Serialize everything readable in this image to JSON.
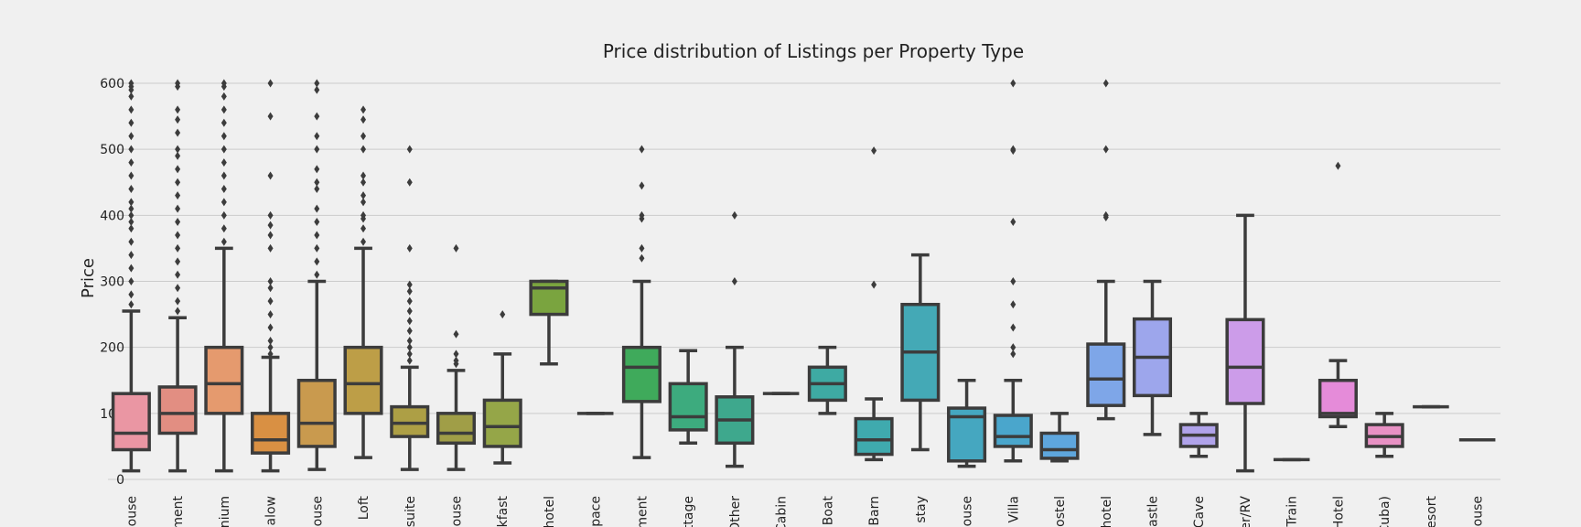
{
  "chart_data": {
    "type": "box",
    "title": "Price distribution of Listings per Property Type",
    "xlabel": "",
    "ylabel": "Price",
    "ylim": [
      -10,
      610
    ],
    "yticks": [
      0,
      100,
      200,
      300,
      400,
      500,
      600
    ],
    "grid": "horizontal",
    "legend": "none",
    "categories": [
      "ouse",
      "ment",
      "nium",
      "alow",
      "ouse",
      "Loft",
      "suite",
      "ouse",
      "kfast",
      "hotel",
      "space",
      "ment",
      "ttage",
      "Other",
      "Cabin",
      "Boat",
      "Barn",
      "stay",
      "ouse",
      "Villa",
      "ostel",
      "hotel",
      "astle",
      "Cave",
      "er/RV",
      "Train",
      "Hotel",
      "Cuba)",
      "esort",
      "ouse"
    ],
    "boxes": [
      {
        "category": "ouse",
        "color": "#ea96a3",
        "whisker_low": 13,
        "q1": 45,
        "median": 70,
        "q3": 130,
        "whisker_high": 255,
        "outliers": [
          265,
          280,
          300,
          320,
          340,
          360,
          380,
          390,
          400,
          410,
          420,
          440,
          460,
          480,
          500,
          520,
          540,
          560,
          580,
          590,
          595,
          600
        ]
      },
      {
        "category": "ment",
        "color": "#e28e82",
        "whisker_low": 13,
        "q1": 70,
        "median": 100,
        "q3": 140,
        "whisker_high": 245,
        "outliers": [
          255,
          270,
          290,
          310,
          330,
          350,
          370,
          390,
          410,
          430,
          450,
          470,
          490,
          500,
          525,
          545,
          560,
          595,
          600
        ]
      },
      {
        "category": "nium",
        "color": "#e59a6e",
        "whisker_low": 13,
        "q1": 100,
        "median": 145,
        "q3": 200,
        "whisker_high": 350,
        "outliers": [
          360,
          380,
          400,
          420,
          440,
          460,
          480,
          500,
          520,
          540,
          560,
          580,
          595,
          600
        ]
      },
      {
        "category": "alow",
        "color": "#d99043",
        "whisker_low": 13,
        "q1": 40,
        "median": 60,
        "q3": 100,
        "whisker_high": 185,
        "outliers": [
          190,
          200,
          210,
          230,
          250,
          270,
          290,
          300,
          350,
          370,
          385,
          400,
          460,
          550,
          600
        ]
      },
      {
        "category": "ouse",
        "color": "#c99a4e",
        "whisker_low": 15,
        "q1": 50,
        "median": 85,
        "q3": 150,
        "whisker_high": 300,
        "outliers": [
          310,
          330,
          350,
          370,
          390,
          410,
          440,
          450,
          470,
          500,
          520,
          550,
          590,
          600
        ]
      },
      {
        "category": "Loft",
        "color": "#bd9e47",
        "whisker_low": 33,
        "q1": 100,
        "median": 145,
        "q3": 200,
        "whisker_high": 350,
        "outliers": [
          360,
          380,
          395,
          400,
          420,
          430,
          450,
          460,
          500,
          520,
          545,
          560
        ]
      },
      {
        "category": "suite",
        "color": "#ad9f45",
        "whisker_low": 15,
        "q1": 65,
        "median": 85,
        "q3": 110,
        "whisker_high": 170,
        "outliers": [
          180,
          190,
          200,
          210,
          225,
          240,
          255,
          270,
          285,
          295,
          350,
          450,
          500
        ]
      },
      {
        "category": "ouse",
        "color": "#a09e47",
        "whisker_low": 15,
        "q1": 55,
        "median": 70,
        "q3": 100,
        "whisker_high": 165,
        "outliers": [
          175,
          180,
          190,
          220,
          350
        ]
      },
      {
        "category": "kfast",
        "color": "#95a648",
        "whisker_low": 25,
        "q1": 50,
        "median": 80,
        "q3": 120,
        "whisker_high": 190,
        "outliers": [
          250
        ]
      },
      {
        "category": "hotel",
        "color": "#7aa43f",
        "whisker_low": 175,
        "q1": 250,
        "median": 290,
        "q3": 300,
        "whisker_high": 300,
        "outliers": []
      },
      {
        "category": "space",
        "color": "#5da848",
        "whisker_low": 100,
        "q1": 100,
        "median": 100,
        "q3": 100,
        "whisker_high": 100,
        "outliers": []
      },
      {
        "category": "ment",
        "color": "#3faa5b",
        "whisker_low": 33,
        "q1": 118,
        "median": 170,
        "q3": 200,
        "whisker_high": 300,
        "outliers": [
          335,
          350,
          395,
          400,
          445,
          500
        ]
      },
      {
        "category": "ttage",
        "color": "#3dab7e",
        "whisker_low": 55,
        "q1": 75,
        "median": 95,
        "q3": 145,
        "whisker_high": 195,
        "outliers": []
      },
      {
        "category": "Other",
        "color": "#3ea88d",
        "whisker_low": 20,
        "q1": 55,
        "median": 90,
        "q3": 125,
        "whisker_high": 200,
        "outliers": [
          300,
          400
        ]
      },
      {
        "category": "Cabin",
        "color": "#3ea99a",
        "whisker_low": 130,
        "q1": 130,
        "median": 130,
        "q3": 130,
        "whisker_high": 130,
        "outliers": []
      },
      {
        "category": "Boat",
        "color": "#3eaaa3",
        "whisker_low": 100,
        "q1": 120,
        "median": 145,
        "q3": 170,
        "whisker_high": 200,
        "outliers": []
      },
      {
        "category": "Barn",
        "color": "#3faaae",
        "whisker_low": 30,
        "q1": 38,
        "median": 60,
        "q3": 92,
        "whisker_high": 122,
        "outliers": [
          295,
          498
        ]
      },
      {
        "category": "stay",
        "color": "#44a9b6",
        "whisker_low": 45,
        "q1": 120,
        "median": 193,
        "q3": 265,
        "whisker_high": 340,
        "outliers": []
      },
      {
        "category": "ouse",
        "color": "#45a7c0",
        "whisker_low": 20,
        "q1": 28,
        "median": 95,
        "q3": 108,
        "whisker_high": 150,
        "outliers": []
      },
      {
        "category": "Villa",
        "color": "#4aa6cc",
        "whisker_low": 28,
        "q1": 50,
        "median": 65,
        "q3": 97,
        "whisker_high": 150,
        "outliers": [
          190,
          200,
          230,
          265,
          300,
          390,
          498,
          500,
          600
        ]
      },
      {
        "category": "ostel",
        "color": "#5ea6dd",
        "whisker_low": 28,
        "q1": 32,
        "median": 45,
        "q3": 70,
        "whisker_high": 100,
        "outliers": []
      },
      {
        "category": "hotel",
        "color": "#7ea6e8",
        "whisker_low": 92,
        "q1": 112,
        "median": 152,
        "q3": 205,
        "whisker_high": 300,
        "outliers": [
          397,
          400,
          500,
          600
        ]
      },
      {
        "category": "astle",
        "color": "#9da6ec",
        "whisker_low": 68,
        "q1": 127,
        "median": 185,
        "q3": 243,
        "whisker_high": 300,
        "outliers": []
      },
      {
        "category": "Cave",
        "color": "#b0a3ea",
        "whisker_low": 35,
        "q1": 50,
        "median": 67,
        "q3": 83,
        "whisker_high": 100,
        "outliers": []
      },
      {
        "category": "er/RV",
        "color": "#cc9ce9",
        "whisker_low": 13,
        "q1": 115,
        "median": 170,
        "q3": 242,
        "whisker_high": 400,
        "outliers": []
      },
      {
        "category": "Train",
        "color": "#d98fde",
        "whisker_low": 30,
        "q1": 30,
        "median": 30,
        "q3": 30,
        "whisker_high": 30,
        "outliers": []
      },
      {
        "category": "Hotel",
        "color": "#e58bd9",
        "whisker_low": 80,
        "q1": 95,
        "median": 100,
        "q3": 150,
        "whisker_high": 180,
        "outliers": [
          475
        ]
      },
      {
        "category": "Cuba)",
        "color": "#e891c4",
        "whisker_low": 35,
        "q1": 50,
        "median": 65,
        "q3": 83,
        "whisker_high": 100,
        "outliers": []
      },
      {
        "category": "esort",
        "color": "#e990b4",
        "whisker_low": 110,
        "q1": 110,
        "median": 110,
        "q3": 110,
        "whisker_high": 110,
        "outliers": []
      },
      {
        "category": "ouse",
        "color": "#e98fa4",
        "whisker_low": 60,
        "q1": 60,
        "median": 60,
        "q3": 60,
        "whisker_high": 60,
        "outliers": []
      }
    ]
  }
}
